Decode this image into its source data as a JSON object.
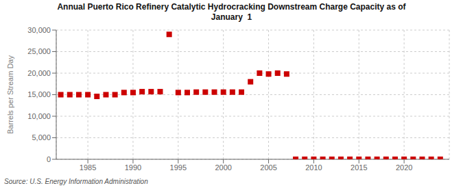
{
  "chart_data": {
    "type": "scatter",
    "title": "Annual Puerto Rico Refinery Catalytic Hydrocracking Downstream Charge Capacity as of\nJanuary  1",
    "ylabel": "Barrels per Stream Day",
    "source": "Source: U.S. Energy Information Administration",
    "x": [
      1982,
      1983,
      1984,
      1985,
      1986,
      1987,
      1988,
      1989,
      1990,
      1991,
      1992,
      1993,
      1994,
      1995,
      1996,
      1997,
      1998,
      1999,
      2000,
      2001,
      2002,
      2003,
      2004,
      2005,
      2006,
      2007,
      2008,
      2009,
      2010,
      2011,
      2012,
      2013,
      2014,
      2015,
      2016,
      2017,
      2018,
      2019,
      2020,
      2021,
      2022,
      2023,
      2024
    ],
    "values": [
      15000,
      15000,
      15000,
      15000,
      14600,
      15000,
      15000,
      15500,
      15500,
      15700,
      15700,
      15700,
      29000,
      15500,
      15500,
      15600,
      15600,
      15600,
      15600,
      15600,
      15600,
      18000,
      20000,
      19800,
      20000,
      19800,
      0,
      0,
      0,
      0,
      0,
      0,
      0,
      0,
      0,
      0,
      0,
      0,
      0,
      0,
      0,
      0,
      0
    ],
    "color": "#cc0000",
    "marker": "square",
    "xlim": [
      1981.5,
      2025
    ],
    "xticks": [
      1985,
      1990,
      1995,
      2000,
      2005,
      2010,
      2015,
      2020
    ],
    "ylim": [
      0,
      30000
    ],
    "yticks": [
      0,
      {
        "value": 5000,
        "label": "5,000"
      },
      {
        "value": 10000,
        "label": "10,000"
      },
      {
        "value": 15000,
        "label": "15,000"
      },
      {
        "value": 20000,
        "label": "20,000"
      },
      {
        "value": 25000,
        "label": "25,000"
      },
      {
        "value": 30000,
        "label": "30,000"
      }
    ],
    "grid": true
  }
}
